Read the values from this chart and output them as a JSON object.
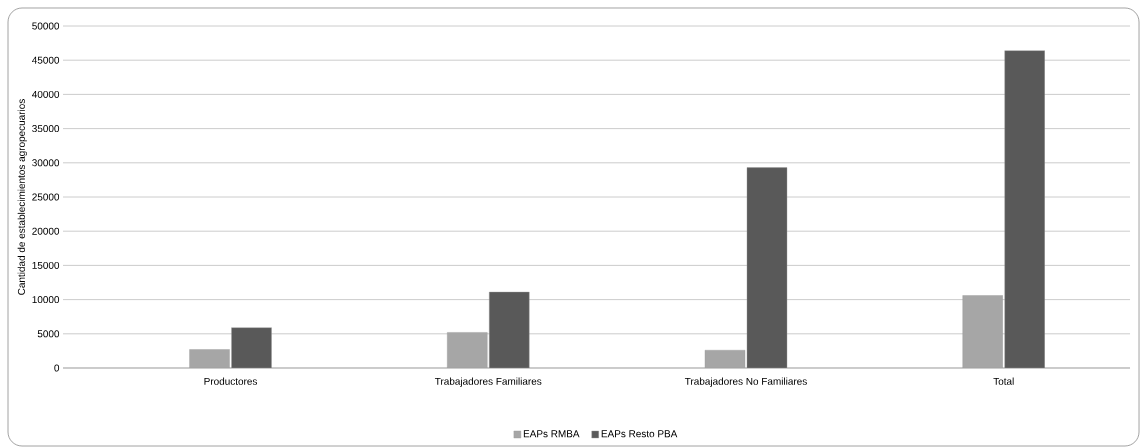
{
  "chart_data": {
    "type": "bar",
    "ylabel": "Cantidad de establecimientos agropecuarios",
    "categories": [
      "Productores",
      "Trabajadores Familiares",
      "Trabajadores No Familiares",
      "Total"
    ],
    "series": [
      {
        "name": "EAPs RMBA",
        "color": "#a6a6a6",
        "values": [
          2700,
          5200,
          2600,
          10600
        ]
      },
      {
        "name": "EAPs Resto PBA",
        "color": "#595959",
        "values": [
          5900,
          11100,
          29300,
          46400
        ]
      }
    ],
    "ylim": [
      0,
      50000
    ],
    "yticks": [
      0,
      5000,
      10000,
      15000,
      20000,
      25000,
      30000,
      35000,
      40000,
      45000,
      50000
    ],
    "grid": "y",
    "legend": "bottom"
  }
}
